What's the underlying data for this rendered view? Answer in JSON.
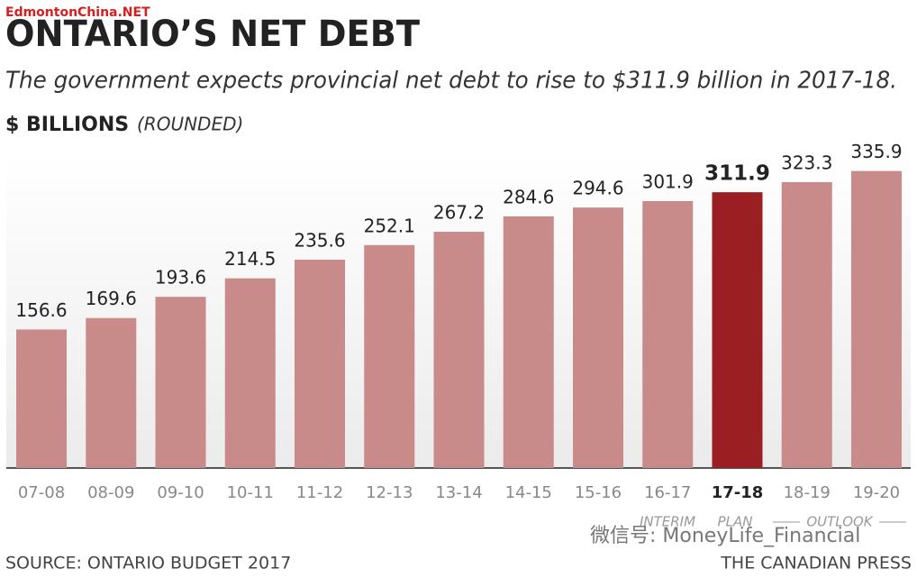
{
  "watermark": "EdmontonChina.NET",
  "chart_data": {
    "type": "bar",
    "title": "ONTARIO’S NET DEBT",
    "subtitle": "The government expects provincial net debt to rise to $311.9 billion in 2017-18.",
    "unit_label": "$ BILLIONS",
    "unit_note": "(ROUNDED)",
    "categories": [
      "07-08",
      "08-09",
      "09-10",
      "10-11",
      "11-12",
      "12-13",
      "13-14",
      "14-15",
      "15-16",
      "16-17",
      "17-18",
      "18-19",
      "19-20"
    ],
    "values": [
      156.6,
      169.6,
      193.6,
      214.5,
      235.6,
      252.1,
      267.2,
      284.6,
      294.6,
      301.9,
      311.9,
      323.3,
      335.9
    ],
    "colors": [
      "#c98a8a",
      "#c98a8a",
      "#c98a8a",
      "#c98a8a",
      "#c98a8a",
      "#c98a8a",
      "#c98a8a",
      "#c98a8a",
      "#c98a8a",
      "#c98a8a",
      "#9b1f22",
      "#c98a8a",
      "#c98a8a"
    ],
    "ylim": [
      0,
      360
    ],
    "annotations": [
      "INTERIM",
      "PLAN",
      "OUTLOOK"
    ],
    "source": "SOURCE: ONTARIO BUDGET 2017",
    "credit": "THE CANADIAN PRESS"
  },
  "wechat": "微信号: MoneyLife_Financial"
}
